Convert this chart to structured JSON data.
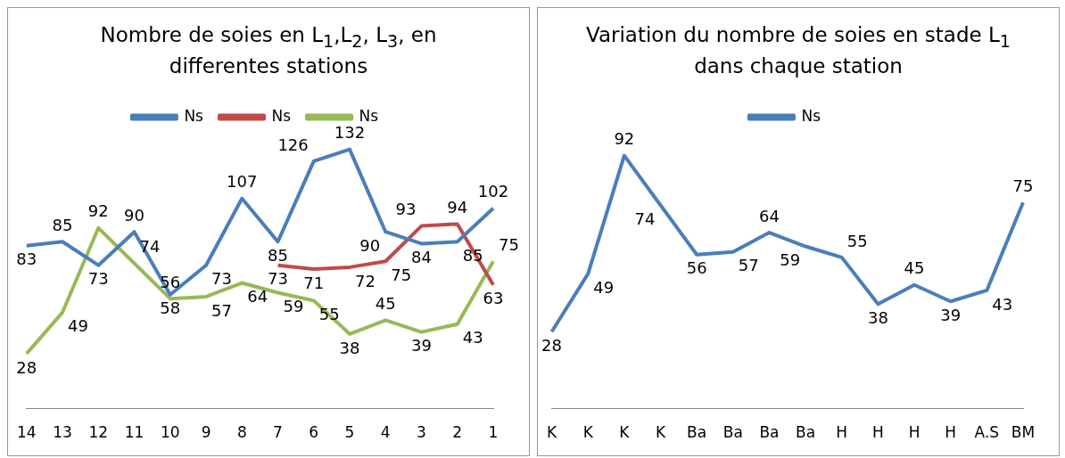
{
  "chart_data": [
    {
      "type": "line",
      "title": "Nombre de soies  en L$_{1}$,L$_{2}$, L$_{3}$, en differentes stations",
      "categories": [
        "14",
        "13",
        "12",
        "11",
        "10",
        "9",
        "8",
        "7",
        "6",
        "5",
        "4",
        "3",
        "2",
        "1"
      ],
      "series": [
        {
          "name": "Ns",
          "color": "#4a7ebb",
          "values": [
            83,
            85,
            73,
            90,
            58,
            73,
            107,
            85,
            126,
            132,
            90,
            84,
            85,
            102
          ]
        },
        {
          "name": "Ns",
          "color": "#be4b48",
          "values": [
            null,
            null,
            null,
            null,
            null,
            null,
            null,
            73,
            71,
            72,
            75,
            93,
            94,
            63
          ]
        },
        {
          "name": "Ns",
          "color": "#98b954",
          "values": [
            28,
            49,
            92,
            74,
            56,
            57,
            64,
            59,
            55,
            38,
            45,
            39,
            43,
            75
          ]
        }
      ],
      "legend": "top",
      "grid": false,
      "data_labels": true,
      "marker": "none"
    },
    {
      "type": "line",
      "title": "Variation du nombre de soies en stade L$_{1}$ dans chaque station",
      "categories": [
        "K",
        "K",
        "K",
        "K",
        "Ba",
        "Ba",
        "Ba",
        "Ba",
        "H",
        "H",
        "H",
        "H",
        "A.S",
        "BM"
      ],
      "series": [
        {
          "name": "Ns",
          "color": "#4a7ebb",
          "values": [
            28,
            49,
            92,
            74,
            56,
            57,
            64,
            59,
            55,
            38,
            45,
            39,
            43,
            75
          ]
        }
      ],
      "legend": "top",
      "grid": false,
      "data_labels": true,
      "marker": "none"
    }
  ]
}
